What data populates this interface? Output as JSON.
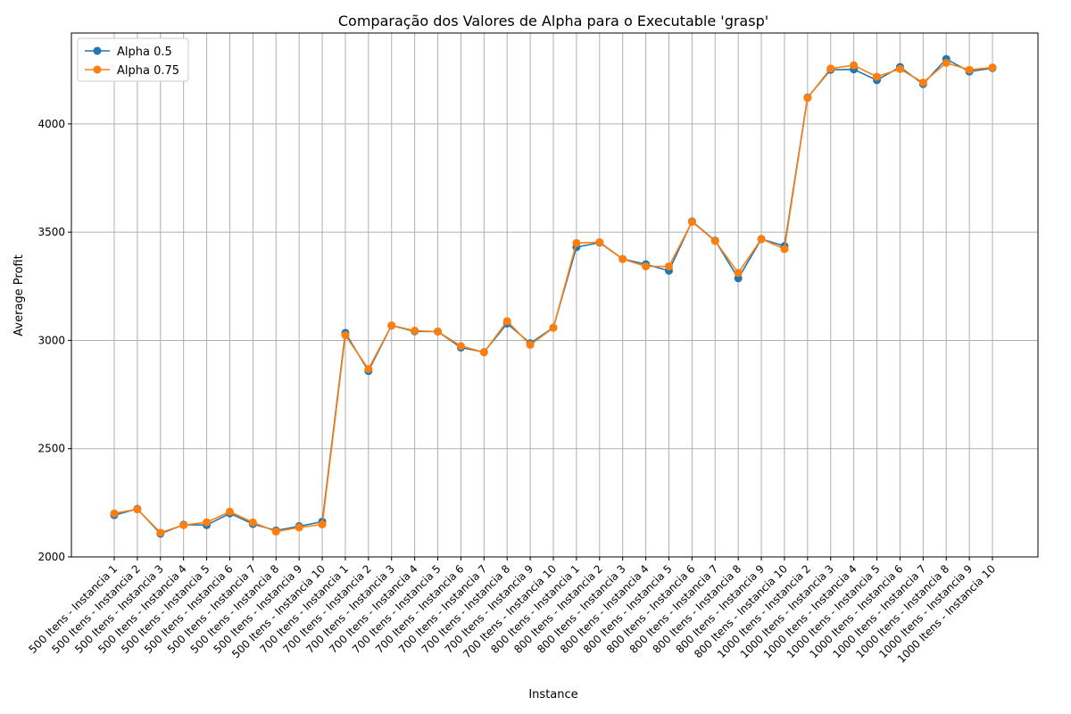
{
  "chart_data": {
    "type": "line",
    "title": "Comparação dos Valores de Alpha para o Executable 'grasp'",
    "xlabel": "Instance",
    "ylabel": "Average Profit",
    "ylim": [
      2000,
      4420
    ],
    "yticks": [
      2000,
      2500,
      3000,
      3500,
      4000
    ],
    "grid": true,
    "legend_position": "top-left",
    "categories": [
      "500 Itens - Instancia 1",
      "500 Itens - Instancia 2",
      "500 Itens - Instancia 3",
      "500 Itens - Instancia 4",
      "500 Itens - Instancia 5",
      "500 Itens - Instancia 6",
      "500 Itens - Instancia 7",
      "500 Itens - Instancia 8",
      "500 Itens - Instancia 9",
      "500 Itens - Instancia 10",
      "700 Itens - Instancia 1",
      "700 Itens - Instancia 2",
      "700 Itens - Instancia 3",
      "700 Itens - Instancia 4",
      "700 Itens - Instancia 5",
      "700 Itens - Instancia 6",
      "700 Itens - Instancia 7",
      "700 Itens - Instancia 8",
      "700 Itens - Instancia 9",
      "700 Itens - Instancia 10",
      "800 Itens - Instancia 1",
      "800 Itens - Instancia 2",
      "800 Itens - Instancia 3",
      "800 Itens - Instancia 4",
      "800 Itens - Instancia 5",
      "800 Itens - Instancia 6",
      "800 Itens - Instancia 7",
      "800 Itens - Instancia 8",
      "800 Itens - Instancia 9",
      "800 Itens - Instancia 10",
      "1000 Itens - Instancia 2",
      "1000 Itens - Instancia 3",
      "1000 Itens - Instancia 4",
      "1000 Itens - Instancia 5",
      "1000 Itens - Instancia 6",
      "1000 Itens - Instancia 7",
      "1000 Itens - Instancia 8",
      "1000 Itens - Instancia 9",
      "1000 Itens - Instancia 10"
    ],
    "series": [
      {
        "name": "Alpha 0.5",
        "color": "#1f77b4",
        "values": [
          2193,
          2222,
          2107,
          2149,
          2147,
          2201,
          2152,
          2122,
          2142,
          2163,
          3035,
          2859,
          3069,
          3042,
          3041,
          2967,
          2946,
          3078,
          2987,
          3059,
          3431,
          3452,
          3376,
          3352,
          3322,
          3550,
          3461,
          3287,
          3468,
          3436,
          4122,
          4250,
          4252,
          4202,
          4263,
          4184,
          4300,
          4242,
          4258
        ]
      },
      {
        "name": "Alpha 0.75",
        "color": "#ff7f0e",
        "values": [
          2201,
          2220,
          2112,
          2147,
          2160,
          2209,
          2159,
          2117,
          2136,
          2150,
          3024,
          2868,
          3069,
          3045,
          3041,
          2974,
          2945,
          3089,
          2980,
          3058,
          3450,
          3454,
          3376,
          3342,
          3342,
          3548,
          3459,
          3312,
          3469,
          3422,
          4120,
          4256,
          4271,
          4218,
          4254,
          4191,
          4282,
          4250,
          4261
        ]
      }
    ]
  }
}
